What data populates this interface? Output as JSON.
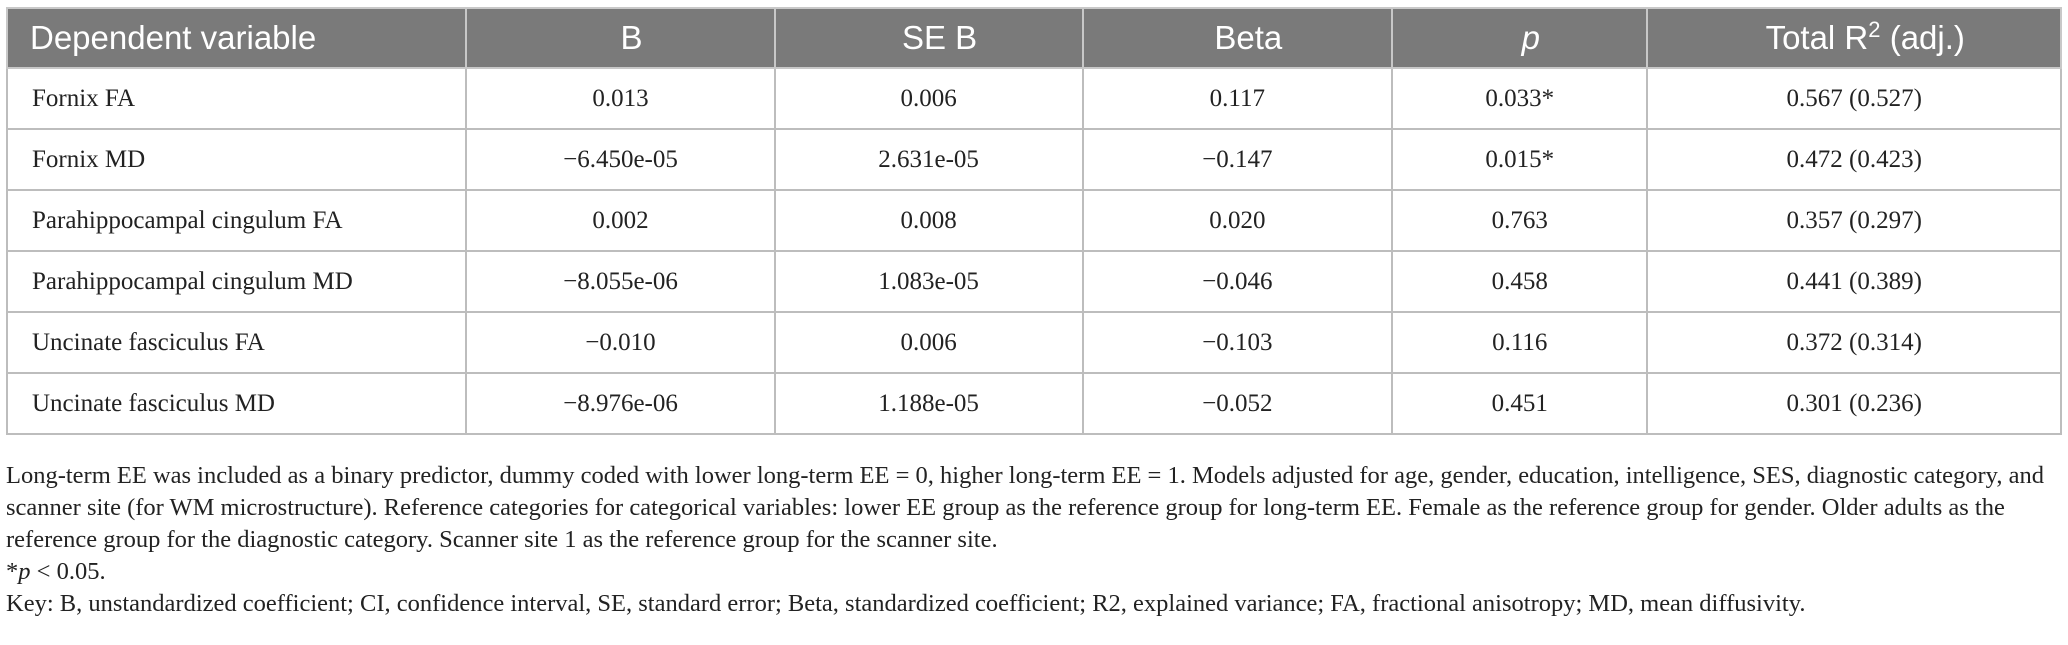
{
  "table": {
    "headers": [
      {
        "label": "Dependent variable"
      },
      {
        "label": "B"
      },
      {
        "label": "SE B"
      },
      {
        "label": "Beta"
      },
      {
        "label": "p"
      },
      {
        "label": "Total R",
        "sup": "2",
        "suffix": " (adj.)"
      }
    ],
    "rows": [
      {
        "variable": "Fornix FA",
        "b": "0.013",
        "se_b": "0.006",
        "beta": "0.117",
        "p": "0.033*",
        "r2": "0.567 (0.527)"
      },
      {
        "variable": "Fornix MD",
        "b": "−6.450e-05",
        "se_b": "2.631e-05",
        "beta": "−0.147",
        "p": "0.015*",
        "r2": "0.472 (0.423)"
      },
      {
        "variable": "Parahippocampal cingulum FA",
        "b": "0.002",
        "se_b": "0.008",
        "beta": "0.020",
        "p": "0.763",
        "r2": "0.357 (0.297)"
      },
      {
        "variable": "Parahippocampal cingulum MD",
        "b": "−8.055e-06",
        "se_b": "1.083e-05",
        "beta": "−0.046",
        "p": "0.458",
        "r2": "0.441 (0.389)"
      },
      {
        "variable": "Uncinate fasciculus FA",
        "b": "−0.010",
        "se_b": "0.006",
        "beta": "−0.103",
        "p": "0.116",
        "r2": "0.372 (0.314)"
      },
      {
        "variable": "Uncinate fasciculus MD",
        "b": "−8.976e-06",
        "se_b": "1.188e-05",
        "beta": "−0.052",
        "p": "0.451",
        "r2": "0.301 (0.236)"
      }
    ]
  },
  "notes": {
    "footnote": "Long-term EE was included as a binary predictor, dummy coded with lower long-term EE = 0, higher long-term EE = 1. Models adjusted for age, gender, education, intelligence, SES, diagnostic category, and scanner site (for WM microstructure). Reference categories for categorical variables: lower EE group as the reference group for long-term EE. Female as the reference group for gender. Older adults as the reference group for the diagnostic category. Scanner site 1 as the reference group for the scanner site.",
    "significance_star": "*",
    "significance_p": "p",
    "significance_text": " < 0.05.",
    "key": "Key: B, unstandardized coefficient; CI, confidence interval, SE, standard error; Beta, standardized coefficient; R2, explained variance; FA, fractional anisotropy; MD, mean diffusivity."
  }
}
